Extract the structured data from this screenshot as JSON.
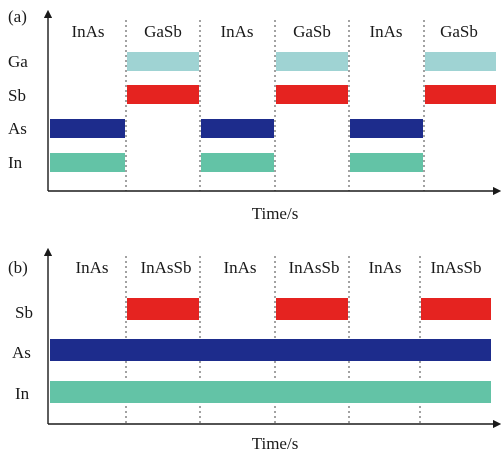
{
  "panels": [
    {
      "id": "a",
      "label": "(a)",
      "segments": [
        "InAs",
        "GaSb",
        "InAs",
        "GaSb",
        "InAs",
        "GaSb"
      ],
      "xlabel": "Time/s",
      "rows": [
        {
          "label": "Ga",
          "color": "#9fd3d3",
          "on_segments": [
            1,
            3,
            5
          ]
        },
        {
          "label": "Sb",
          "color": "#e52320",
          "on_segments": [
            1,
            3,
            5
          ]
        },
        {
          "label": "As",
          "color": "#1d2c8c",
          "on_segments": [
            0,
            2,
            4
          ]
        },
        {
          "label": "In",
          "color": "#63c3a6",
          "on_segments": [
            0,
            2,
            4
          ]
        }
      ]
    },
    {
      "id": "b",
      "label": "(b)",
      "segments": [
        "InAs",
        "InAsSb",
        "InAs",
        "InAsSb",
        "InAs",
        "InAsSb"
      ],
      "xlabel": "Time/s",
      "rows": [
        {
          "label": "Sb",
          "color": "#e52320",
          "on_segments": [
            1,
            3,
            5
          ]
        },
        {
          "label": "As",
          "color": "#1d2c8c",
          "on_segments": [
            0,
            1,
            2,
            3,
            4,
            5
          ]
        },
        {
          "label": "In",
          "color": "#63c3a6",
          "on_segments": [
            0,
            1,
            2,
            3,
            4,
            5
          ]
        }
      ]
    }
  ]
}
